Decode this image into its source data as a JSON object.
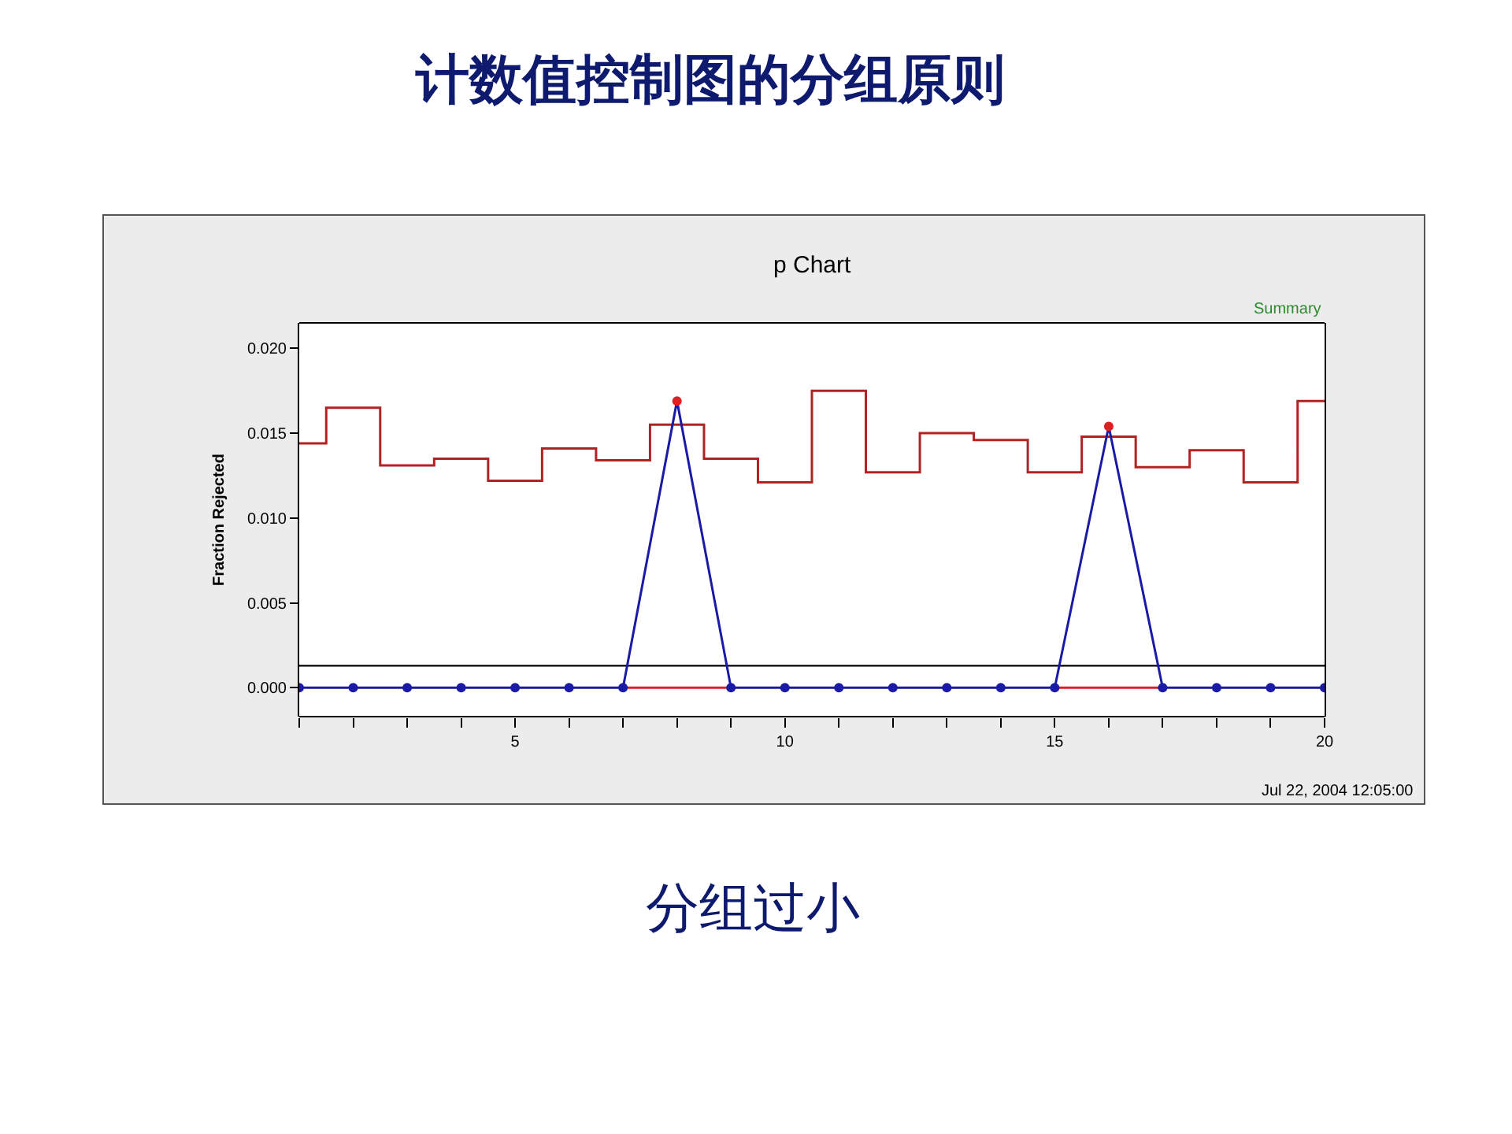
{
  "chart_data": {
    "type": "line",
    "title": "计数值控制图的分组原则",
    "subtitle": "p Chart",
    "ylabel": "Fraction Rejected",
    "annotations": [
      "Summary",
      "Jul 22, 2004 12:05:00",
      "分组过小"
    ],
    "x": [
      1,
      2,
      3,
      4,
      5,
      6,
      7,
      8,
      9,
      10,
      11,
      12,
      13,
      14,
      15,
      16,
      17,
      18,
      19,
      20
    ],
    "series": [
      {
        "type": "step",
        "marker": "none",
        "color": "#b22222",
        "values": [
          0.0144,
          0.0165,
          0.0131,
          0.0135,
          0.0122,
          0.0141,
          0.0134,
          0.0155,
          0.0135,
          0.0121,
          0.0175,
          0.0127,
          0.015,
          0.0146,
          0.0127,
          0.0148,
          0.013,
          0.014,
          0.0121,
          0.0169
        ]
      },
      {
        "type": "step",
        "marker": "none",
        "color": "#e02020",
        "values": [
          null,
          null,
          null,
          null,
          null,
          null,
          0,
          0,
          0,
          null,
          null,
          null,
          null,
          null,
          0,
          0,
          0,
          null,
          null,
          null
        ]
      },
      {
        "marker": "circle",
        "color": "#1a1aa6",
        "colors": [
          "#1a1aa6",
          "#1a1aa6",
          "#1a1aa6",
          "#1a1aa6",
          "#1a1aa6",
          "#1a1aa6",
          "#1a1aa6",
          "#e02020",
          "#1a1aa6",
          "#1a1aa6",
          "#1a1aa6",
          "#1a1aa6",
          "#1a1aa6",
          "#1a1aa6",
          "#1a1aa6",
          "#e02020",
          "#1a1aa6",
          "#1a1aa6",
          "#1a1aa6",
          "#1a1aa6"
        ],
        "values": [
          0,
          0,
          0,
          0,
          0,
          0,
          0,
          0.0169,
          0,
          0,
          0,
          0,
          0,
          0,
          0,
          0.0154,
          0,
          0,
          0,
          0
        ]
      }
    ],
    "ref_lines": [
      {
        "axis": "y",
        "value": 0.0013,
        "label": null,
        "color": "#000000"
      }
    ],
    "xlim": [
      1,
      20
    ],
    "xticks": [
      {
        "value": 1,
        "label": null
      },
      {
        "value": 2,
        "label": null
      },
      {
        "value": 3,
        "label": null
      },
      {
        "value": 4,
        "label": null
      },
      5,
      {
        "value": 6,
        "label": null
      },
      {
        "value": 7,
        "label": null
      },
      {
        "value": 8,
        "label": null
      },
      {
        "value": 9,
        "label": null
      },
      10,
      {
        "value": 11,
        "label": null
      },
      {
        "value": 12,
        "label": null
      },
      {
        "value": 13,
        "label": null
      },
      {
        "value": 14,
        "label": null
      },
      15,
      {
        "value": 16,
        "label": null
      },
      {
        "value": 17,
        "label": null
      },
      {
        "value": 18,
        "label": null
      },
      {
        "value": 19,
        "label": null
      },
      20
    ],
    "ylim": [
      -0.0017,
      0.0215
    ],
    "yticks": [
      {
        "value": 0,
        "label": "0.000"
      },
      {
        "value": 0.005,
        "label": "0.005"
      },
      {
        "value": 0.01,
        "label": "0.010"
      },
      {
        "value": 0.015,
        "label": "0.015"
      },
      {
        "value": 0.02,
        "label": "0.020"
      }
    ],
    "grid": false,
    "line_style": "solid"
  }
}
